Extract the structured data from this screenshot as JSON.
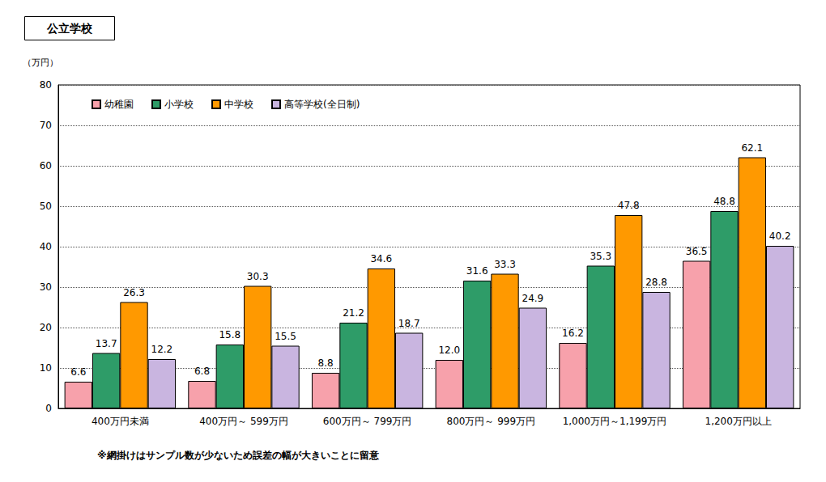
{
  "chart_data": {
    "type": "bar",
    "title": "公立学校",
    "y_label": "（万円）",
    "annotation": "※網掛けはサンプル数が少ないため誤差の幅が大きいことに留意",
    "categories": [
      "400万円未満",
      "400万円～ 599万円",
      "600万円～ 799万円",
      "800万円～ 999万円",
      "1,000万円～1,199万円",
      "1,200万円以上"
    ],
    "series": [
      {
        "name": "幼稚園",
        "color": "#f7a1ab",
        "values": [
          6.6,
          6.8,
          8.8,
          12,
          16.2,
          36.5
        ],
        "value_labels": [
          "6.6",
          "6.8",
          "8.8",
          "12.0",
          "16.2",
          "36.5"
        ]
      },
      {
        "name": "小学校",
        "color": "#2e9c68",
        "values": [
          13.7,
          15.8,
          21.2,
          31.6,
          35.3,
          48.8
        ],
        "value_labels": [
          "13.7",
          "15.8",
          "21.2",
          "31.6",
          "35.3",
          "48.8"
        ]
      },
      {
        "name": "中学校",
        "color": "#ff9900",
        "values": [
          26.3,
          30.3,
          34.6,
          33.3,
          47.8,
          62.1
        ],
        "value_labels": [
          "26.3",
          "30.3",
          "34.6",
          "33.3",
          "47.8",
          "62.1"
        ]
      },
      {
        "name": "高等学校(全日制)",
        "color": "#c9b5e0",
        "values": [
          12.2,
          15.5,
          18.7,
          24.9,
          28.8,
          40.2
        ],
        "value_labels": [
          "12.2",
          "15.5",
          "18.7",
          "24.9",
          "28.8",
          "40.2"
        ]
      }
    ],
    "ylim": [
      0,
      80
    ],
    "yticks": [
      0,
      10,
      20,
      30,
      40,
      50,
      60,
      70,
      80
    ],
    "grid": true,
    "legend": "top-left",
    "data_labels": true
  }
}
